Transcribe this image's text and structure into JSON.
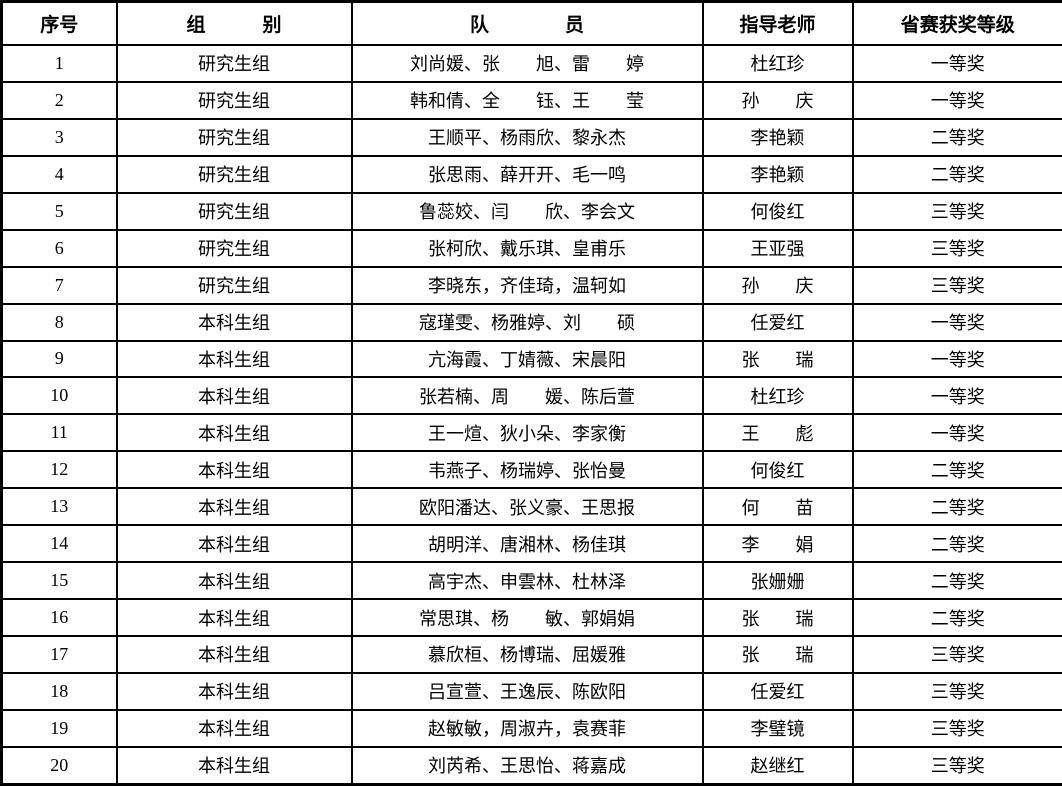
{
  "table": {
    "columns": [
      {
        "key": "no",
        "label": "序号"
      },
      {
        "key": "group",
        "label": "组　　　别"
      },
      {
        "key": "members",
        "label": "队　　　　员"
      },
      {
        "key": "teacher",
        "label": "指导老师"
      },
      {
        "key": "award",
        "label": "省赛获奖等级"
      }
    ],
    "rows": [
      {
        "no": "1",
        "group": "研究生组",
        "members": "刘尚媛、张　　旭、雷　　婷",
        "teacher": "杜红珍",
        "award": "一等奖"
      },
      {
        "no": "2",
        "group": "研究生组",
        "members": "韩和倩、全　　钰、王　　莹",
        "teacher": "孙　　庆",
        "award": "一等奖"
      },
      {
        "no": "3",
        "group": "研究生组",
        "members": "王顺平、杨雨欣、黎永杰",
        "teacher": "李艳颖",
        "award": "二等奖"
      },
      {
        "no": "4",
        "group": "研究生组",
        "members": "张思雨、薛开开、毛一鸣",
        "teacher": "李艳颖",
        "award": "二等奖"
      },
      {
        "no": "5",
        "group": "研究生组",
        "members": "鲁蕊姣、闫　　欣、李会文",
        "teacher": "何俊红",
        "award": "三等奖"
      },
      {
        "no": "6",
        "group": "研究生组",
        "members": "张柯欣、戴乐琪、皇甫乐",
        "teacher": "王亚强",
        "award": "三等奖"
      },
      {
        "no": "7",
        "group": "研究生组",
        "members": "李晓东，齐佳琦，温轲如",
        "teacher": "孙　　庆",
        "award": "三等奖"
      },
      {
        "no": "8",
        "group": "本科生组",
        "members": "寇瑾雯、杨雅婷、刘　　硕",
        "teacher": "任爱红",
        "award": "一等奖"
      },
      {
        "no": "9",
        "group": "本科生组",
        "members": "亢海霞、丁婧薇、宋晨阳",
        "teacher": "张　　瑞",
        "award": "一等奖"
      },
      {
        "no": "10",
        "group": "本科生组",
        "members": "张若楠、周　　媛、陈后萱",
        "teacher": "杜红珍",
        "award": "一等奖"
      },
      {
        "no": "11",
        "group": "本科生组",
        "members": "王一煊、狄小朵、李家衡",
        "teacher": "王　　彪",
        "award": "一等奖"
      },
      {
        "no": "12",
        "group": "本科生组",
        "members": "韦燕子、杨瑞婷、张怡曼",
        "teacher": "何俊红",
        "award": "二等奖"
      },
      {
        "no": "13",
        "group": "本科生组",
        "members": "欧阳潘达、张义豪、王思报",
        "teacher": "何　　苗",
        "award": "二等奖"
      },
      {
        "no": "14",
        "group": "本科生组",
        "members": "胡明洋、唐湘林、杨佳琪",
        "teacher": "李　　娟",
        "award": "二等奖"
      },
      {
        "no": "15",
        "group": "本科生组",
        "members": "高宇杰、申雲林、杜林泽",
        "teacher": "张姗姗",
        "award": "二等奖"
      },
      {
        "no": "16",
        "group": "本科生组",
        "members": "常思琪、杨　　敏、郭娟娟",
        "teacher": "张　　瑞",
        "award": "二等奖"
      },
      {
        "no": "17",
        "group": "本科生组",
        "members": "慕欣桓、杨博瑞、屈媛雅",
        "teacher": "张　　瑞",
        "award": "三等奖"
      },
      {
        "no": "18",
        "group": "本科生组",
        "members": "吕宣萱、王逸辰、陈欧阳",
        "teacher": "任爱红",
        "award": "三等奖"
      },
      {
        "no": "19",
        "group": "本科生组",
        "members": "赵敏敏，周淑卉，袁赛菲",
        "teacher": "李璧镜",
        "award": "三等奖"
      },
      {
        "no": "20",
        "group": "本科生组",
        "members": "刘芮希、王思怡、蒋嘉成",
        "teacher": "赵继红",
        "award": "三等奖"
      }
    ]
  }
}
